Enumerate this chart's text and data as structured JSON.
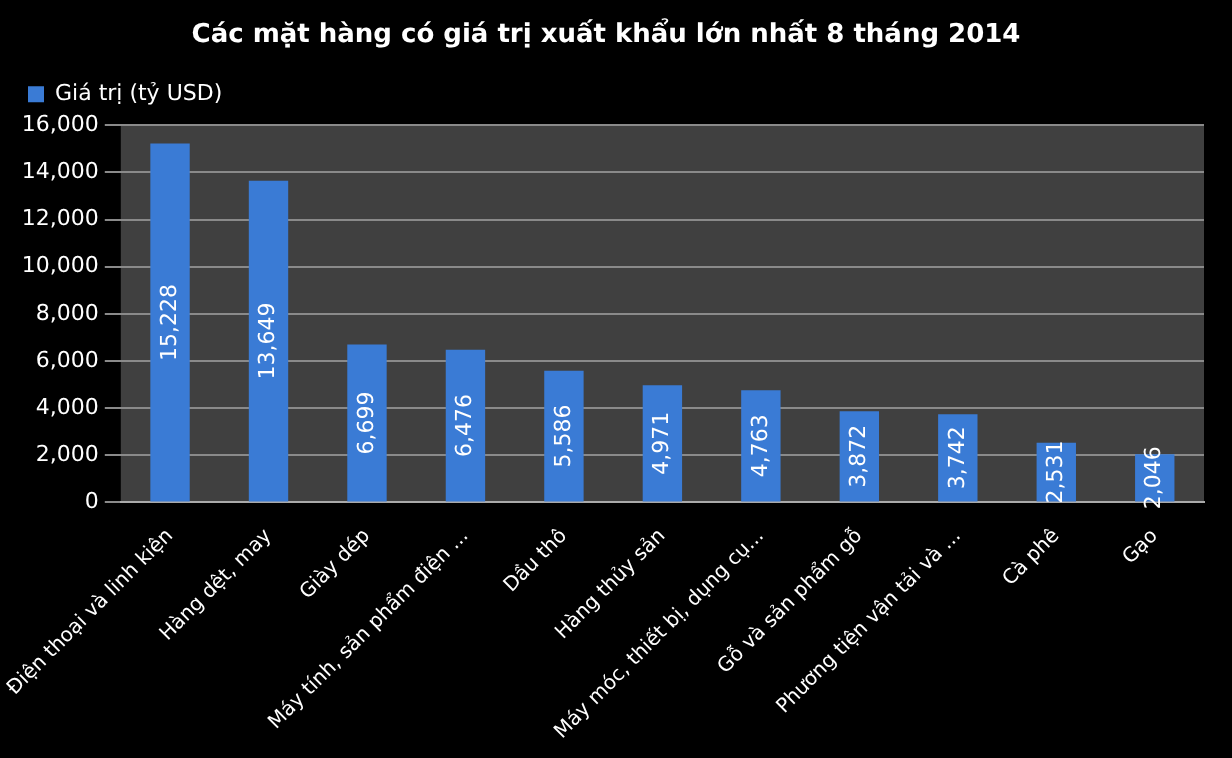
{
  "chart_data": {
    "type": "bar",
    "title": "Các mặt hàng có giá trị xuất khẩu lớn nhất 8 tháng 2014",
    "categories": [
      "Điện thoại và linh kiện",
      "Hàng dệt, may",
      "Giày dép",
      "Máy tính, sản phẩm điện ...",
      "Dầu thô",
      "Hàng thủy sản",
      "Máy móc, thiết bị, dụng cụ...",
      "Gỗ và sản phẩm gỗ",
      "Phương tiện vận tải và ...",
      "Cà phê",
      "Gạo"
    ],
    "series": [
      {
        "name": "Giá trị (tỷ USD)",
        "color": "#3a7bd5",
        "values": [
          15228,
          13649,
          6699,
          6476,
          5586,
          4971,
          4763,
          3872,
          3742,
          2531,
          2046
        ],
        "value_labels": [
          "15,228",
          "13,649",
          "6,699",
          "6,476",
          "5,586",
          "4,971",
          "4,763",
          "3,872",
          "3,742",
          "2,531",
          "2,046"
        ]
      }
    ],
    "ylim": [
      0,
      16000
    ],
    "yticks": [
      {
        "value": 0,
        "label": "0"
      },
      {
        "value": 2000,
        "label": "2,000"
      },
      {
        "value": 4000,
        "label": "4,000"
      },
      {
        "value": 6000,
        "label": "6,000"
      },
      {
        "value": 8000,
        "label": "8,000"
      },
      {
        "value": 10000,
        "label": "10,000"
      },
      {
        "value": 12000,
        "label": "12,000"
      },
      {
        "value": 14000,
        "label": "14,000"
      },
      {
        "value": 16000,
        "label": "16,000"
      }
    ],
    "grid": "y",
    "legend": "top left"
  }
}
